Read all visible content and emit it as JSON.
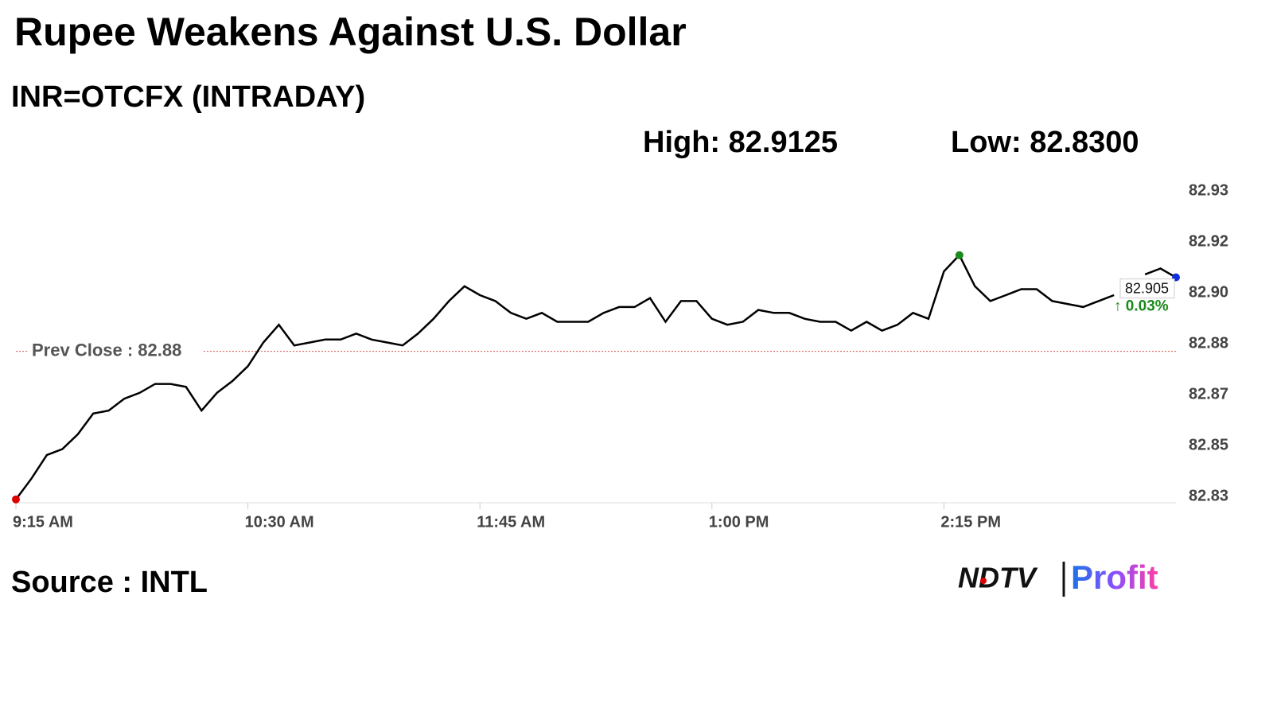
{
  "chart_data": {
    "type": "line",
    "title": "Rupee Weakens Against U.S. Dollar",
    "subtitle": "INR=OTCFX (INTRADAY)",
    "high_label": "High: 82.9125",
    "low_label": "Low: 82.8300",
    "prev_close": 82.88,
    "prev_close_label": "Prev Close : 82.88",
    "last_label": "82.905",
    "change_label": "↑ 0.03%",
    "source": "Source : INTL",
    "logo": {
      "brand": "NDTV",
      "product": "Profit"
    },
    "color": "#000000",
    "x": [
      555,
      560,
      565,
      570,
      575,
      580,
      585,
      590,
      595,
      600,
      605,
      610,
      615,
      620,
      625,
      630,
      635,
      640,
      645,
      650,
      655,
      660,
      665,
      670,
      675,
      680,
      685,
      690,
      695,
      700,
      705,
      710,
      715,
      720,
      725,
      730,
      735,
      740,
      745,
      750,
      755,
      760,
      765,
      770,
      775,
      780,
      785,
      790,
      795,
      800,
      805,
      810,
      815,
      820,
      825,
      830,
      835,
      840,
      845,
      850,
      855,
      860,
      865,
      870,
      875,
      880,
      885,
      890,
      895,
      900,
      905,
      910,
      915,
      920,
      925,
      930
    ],
    "values": [
      82.83,
      82.837,
      82.845,
      82.847,
      82.852,
      82.859,
      82.86,
      82.864,
      82.866,
      82.869,
      82.869,
      82.868,
      82.86,
      82.866,
      82.87,
      82.875,
      82.883,
      82.889,
      82.882,
      82.883,
      82.884,
      82.884,
      82.886,
      82.884,
      82.883,
      82.882,
      82.886,
      82.891,
      82.897,
      82.902,
      82.899,
      82.897,
      82.893,
      82.891,
      82.893,
      82.89,
      82.89,
      82.89,
      82.893,
      82.895,
      82.895,
      82.898,
      82.89,
      82.897,
      82.897,
      82.891,
      82.889,
      82.89,
      82.894,
      82.893,
      82.893,
      82.891,
      82.89,
      82.89,
      82.887,
      82.89,
      82.887,
      82.889,
      82.893,
      82.891,
      82.907,
      82.9125,
      82.902,
      82.897,
      82.899,
      82.901,
      82.901,
      82.897,
      82.896,
      82.895,
      82.897,
      82.899,
      null,
      82.906,
      82.908,
      82.905
    ],
    "xlim": [
      555,
      930
    ],
    "xticks": [
      {
        "value": 555,
        "label": "9:15 AM"
      },
      {
        "value": 630,
        "label": "10:30 AM"
      },
      {
        "value": 705,
        "label": "11:45 AM"
      },
      {
        "value": 780,
        "label": "1:00 PM"
      },
      {
        "value": 855,
        "label": "2:15 PM"
      }
    ],
    "ylim": [
      82.831,
      82.9342
    ],
    "yticks": [
      {
        "value": 82.9342,
        "label": "82.93"
      },
      {
        "value": 82.917,
        "label": "82.92"
      },
      {
        "value": 82.8998,
        "label": "82.90"
      },
      {
        "value": 82.8826,
        "label": "82.88"
      },
      {
        "value": 82.8654,
        "label": "82.87"
      },
      {
        "value": 82.8482,
        "label": "82.85"
      },
      {
        "value": 82.831,
        "label": "82.83"
      }
    ]
  }
}
